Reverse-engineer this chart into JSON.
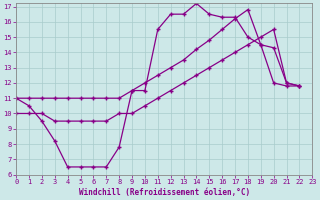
{
  "xlabel": "Windchill (Refroidissement éolien,°C)",
  "xlim": [
    0,
    23
  ],
  "ylim": [
    6,
    17.2
  ],
  "xticks": [
    0,
    1,
    2,
    3,
    4,
    5,
    6,
    7,
    8,
    9,
    10,
    11,
    12,
    13,
    14,
    15,
    16,
    17,
    18,
    19,
    20,
    21,
    22,
    23
  ],
  "yticks": [
    6,
    7,
    8,
    9,
    10,
    11,
    12,
    13,
    14,
    15,
    16,
    17
  ],
  "bg_color": "#cde8e8",
  "line_color": "#880088",
  "line1_x": [
    0,
    1,
    2,
    3,
    4,
    5,
    6,
    7,
    8,
    9,
    10,
    11,
    12,
    13,
    14,
    15,
    16,
    17,
    18,
    19,
    20,
    21,
    22
  ],
  "line1_y": [
    11,
    10.5,
    9.5,
    8.2,
    6.5,
    6.5,
    6.5,
    6.5,
    7.8,
    11.5,
    11.5,
    15.5,
    16.5,
    16.5,
    17.2,
    16.5,
    16.3,
    16.3,
    15.0,
    14.5,
    12.0,
    11.8,
    11.8
  ],
  "line2_x": [
    0,
    1,
    2,
    3,
    4,
    5,
    6,
    7,
    8,
    9,
    10,
    11,
    12,
    13,
    14,
    15,
    16,
    17,
    18,
    19,
    20,
    21,
    22
  ],
  "line2_y": [
    11,
    11,
    11,
    11,
    11,
    11,
    11,
    11,
    11,
    11.5,
    12.0,
    12.5,
    13.0,
    13.5,
    14.2,
    14.8,
    15.5,
    16.2,
    16.8,
    14.5,
    14.3,
    12.0,
    11.8
  ],
  "line3_x": [
    0,
    1,
    2,
    3,
    4,
    5,
    6,
    7,
    8,
    9,
    10,
    11,
    12,
    13,
    14,
    15,
    16,
    17,
    18,
    19,
    20,
    21,
    22
  ],
  "line3_y": [
    10,
    10,
    10,
    9.5,
    9.5,
    9.5,
    9.5,
    9.5,
    10.0,
    10.0,
    10.5,
    11.0,
    11.5,
    12.0,
    12.5,
    13.0,
    13.5,
    14.0,
    14.5,
    15.0,
    15.5,
    12.0,
    11.8
  ]
}
